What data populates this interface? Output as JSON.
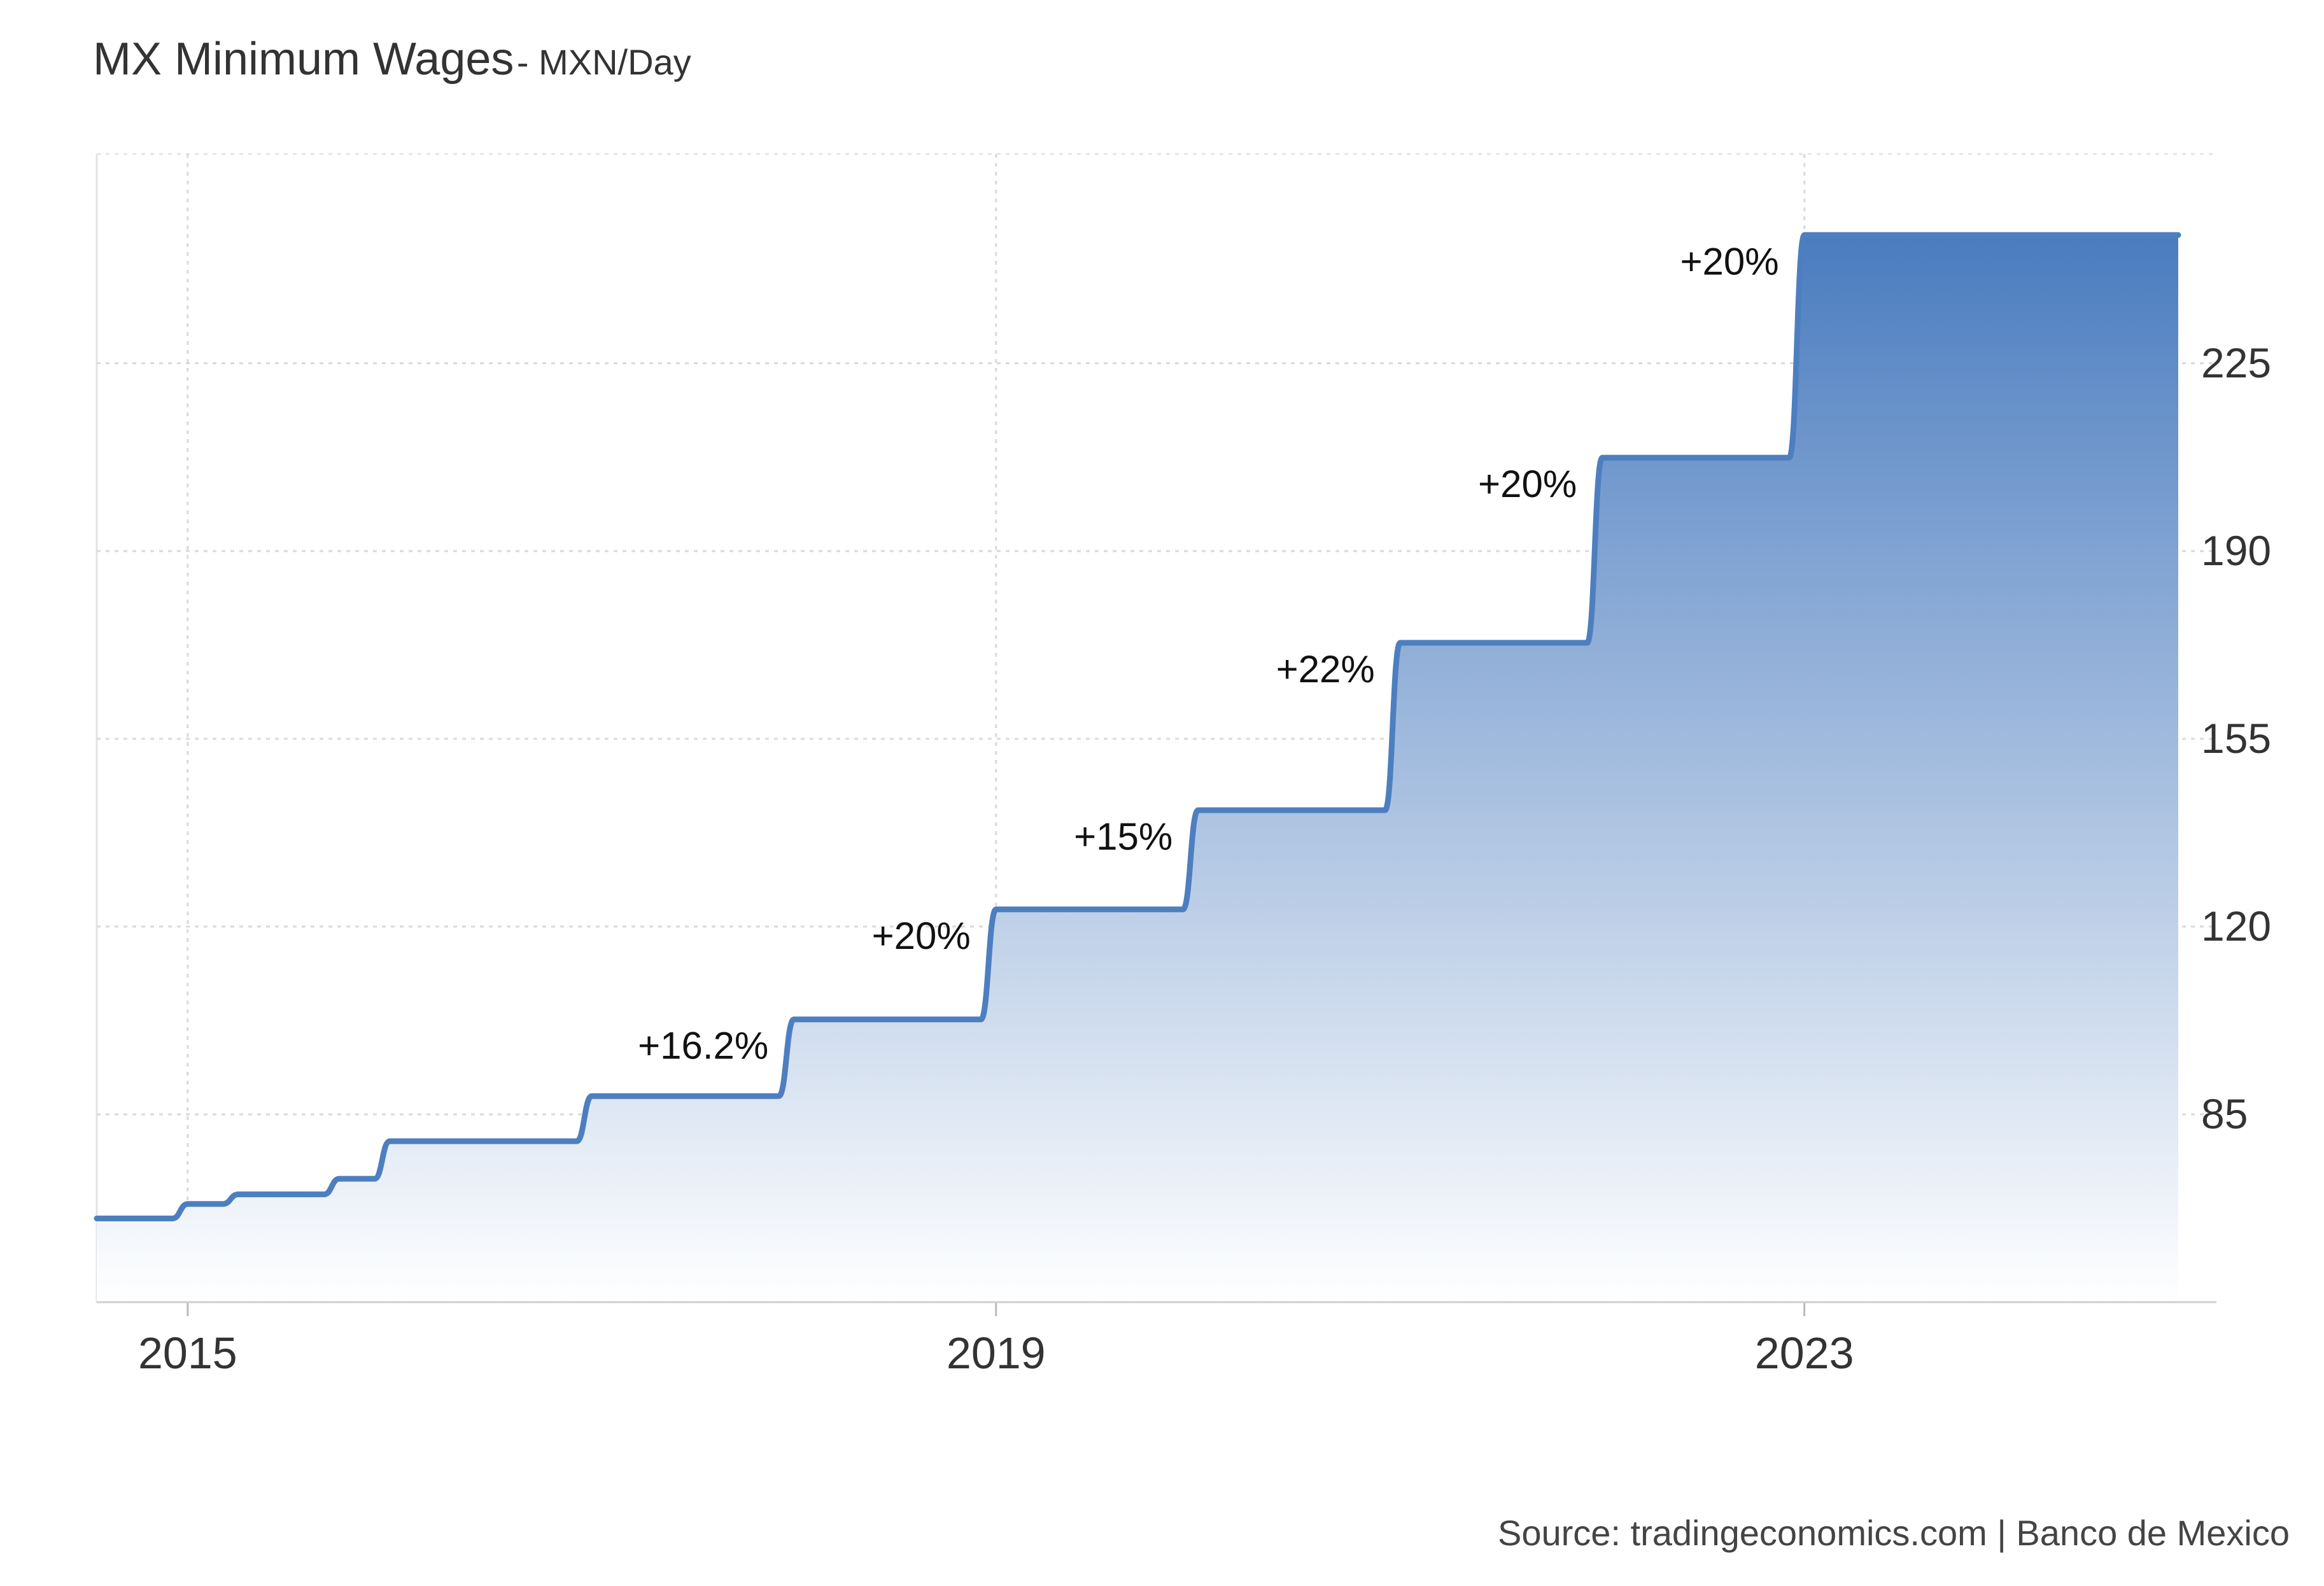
{
  "chart_data": {
    "type": "area",
    "title": "MX Minimum Wages",
    "title_unit": "MXN/Day",
    "xlabel": "",
    "ylabel": "",
    "source": "Source: tradingeconomics.com | Banco de Mexico",
    "x_range": [
      2014.55,
      2024.85
    ],
    "ylim": [
      50,
      264
    ],
    "y_ticks": [
      85,
      120,
      155,
      190,
      225
    ],
    "x_ticks": [
      {
        "value": 2015,
        "label": "2015"
      },
      {
        "value": 2019,
        "label": "2019"
      },
      {
        "value": 2023,
        "label": "2023"
      }
    ],
    "grid": true,
    "legend": "none",
    "colors": {
      "line": "#4d7fc0",
      "fill_top": "#4a7cbf",
      "fill_bottom": "#ffffff"
    },
    "series": [
      {
        "steps": [
          {
            "x": 2014.55,
            "y": 65.6
          },
          {
            "x": 2015.0,
            "y": 68.3
          },
          {
            "x": 2015.25,
            "y": 70.1
          },
          {
            "x": 2015.75,
            "y": 73.0
          },
          {
            "x": 2016.0,
            "y": 80.0
          },
          {
            "x": 2017.0,
            "y": 88.4
          },
          {
            "x": 2018.0,
            "y": 102.7
          },
          {
            "x": 2019.0,
            "y": 123.2
          },
          {
            "x": 2020.0,
            "y": 141.7
          },
          {
            "x": 2021.0,
            "y": 172.9
          },
          {
            "x": 2022.0,
            "y": 207.4
          },
          {
            "x": 2023.0,
            "y": 248.9
          }
        ],
        "x_end": 2024.85
      }
    ],
    "annotations": [
      {
        "text": "+16.2%",
        "x": 2018.0,
        "y": 102.7
      },
      {
        "text": "+20%",
        "x": 2019.0,
        "y": 123.2
      },
      {
        "text": "+15%",
        "x": 2020.0,
        "y": 141.7
      },
      {
        "text": "+22%",
        "x": 2021.0,
        "y": 172.9
      },
      {
        "text": "+20%",
        "x": 2022.0,
        "y": 207.4
      },
      {
        "text": "+20%",
        "x": 2023.0,
        "y": 248.9
      }
    ]
  }
}
